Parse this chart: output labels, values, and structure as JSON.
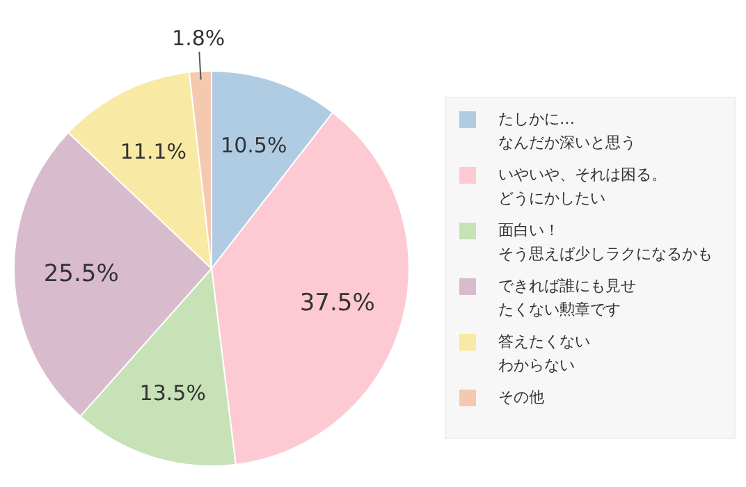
{
  "chart_data": {
    "type": "pie",
    "categories": [
      "たしかに…なんだか深いと思う",
      "いやいや、それは困る。どうにかしたい",
      "面白い！そう思えば少しラクになるかも",
      "できれば誰にも見せたくない勲章です",
      "答えたくないわからない",
      "その他"
    ],
    "values": [
      10.5,
      37.5,
      13.5,
      25.5,
      11.1,
      1.8
    ],
    "colors": [
      "#b0cce3",
      "#fdcad3",
      "#c6e2b6",
      "#d8bccd",
      "#f8e9a4",
      "#f4c9ae"
    ],
    "value_labels": [
      "10.5%",
      "37.5%",
      "13.5%",
      "25.5%",
      "11.1%",
      "1.8%"
    ],
    "legend": "right"
  }
}
